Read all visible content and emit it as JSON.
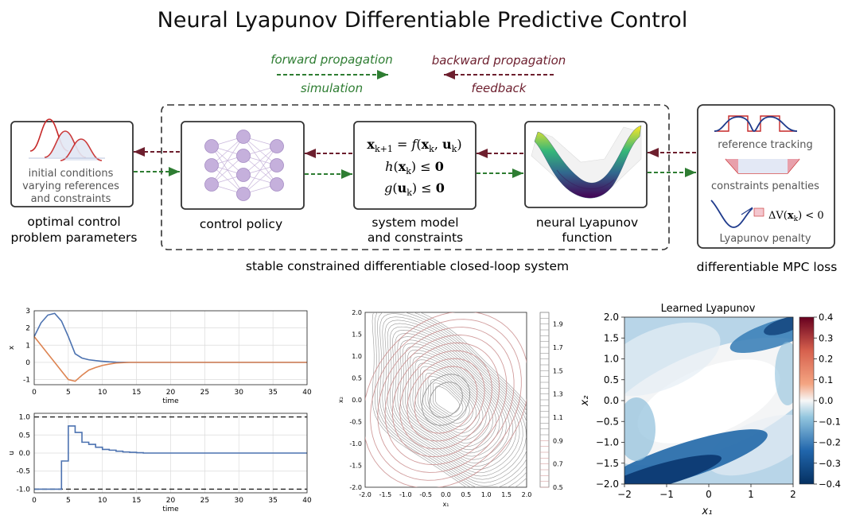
{
  "title": "Neural Lyapunov Differentiable Predictive Control",
  "legend": {
    "forward": "forward propagation",
    "simulation": "simulation",
    "backward": "backward propagation",
    "feedback": "feedback",
    "forward_color": "#2e7d32",
    "backward_color": "#6d1f2e"
  },
  "blocks": {
    "params_text": [
      "initial conditions",
      "varying references",
      "and constraints"
    ],
    "params_caption": [
      "optimal control",
      "problem parameters"
    ],
    "policy_caption": "control policy",
    "model_eq": [
      "x_{k+1} = f(x_k, u_k)",
      "h(x_k) ≤ 0",
      "g(u_k) ≤ 0"
    ],
    "model_caption": [
      "system model",
      "and constraints"
    ],
    "lyap_caption": [
      "neural Lyapunov",
      "function"
    ],
    "loop_caption": "stable constrained differentiable closed-loop system",
    "loss_items": [
      "reference tracking",
      "constraints penalties",
      "Lyapunov penalty"
    ],
    "lyap_inequality": "ΔV(x_k) < 0",
    "loss_caption": "differentiable MPC loss"
  },
  "chart_data": [
    {
      "type": "line",
      "ylabel": "x",
      "xlabel": "time",
      "xlim": [
        0,
        40
      ],
      "ylim": [
        -1.3,
        3.0
      ],
      "xticks": [
        0,
        5,
        10,
        15,
        20,
        25,
        30,
        35,
        40
      ],
      "yticks": [
        -1,
        0,
        1,
        2,
        3
      ],
      "grid": true,
      "series": [
        {
          "color": "#4c72b0",
          "x": [
            0,
            1,
            2,
            3,
            4,
            5,
            6,
            7,
            8,
            9,
            10,
            11,
            12,
            14,
            16,
            20,
            25,
            30,
            40
          ],
          "y": [
            1.5,
            2.3,
            2.75,
            2.85,
            2.4,
            1.5,
            0.5,
            0.25,
            0.15,
            0.1,
            0.06,
            0.03,
            0.01,
            0,
            0,
            0,
            0,
            0,
            0
          ]
        },
        {
          "color": "#dd8452",
          "x": [
            0,
            1,
            2,
            3,
            4,
            5,
            6,
            7,
            8,
            9,
            10,
            11,
            12,
            14,
            16,
            20,
            25,
            30,
            40
          ],
          "y": [
            1.5,
            1.0,
            0.5,
            0.0,
            -0.5,
            -1.0,
            -1.1,
            -0.75,
            -0.45,
            -0.3,
            -0.18,
            -0.1,
            -0.04,
            0,
            0,
            0,
            0,
            0,
            0
          ]
        }
      ]
    },
    {
      "type": "line",
      "ylabel": "u",
      "xlabel": "time",
      "xlim": [
        0,
        40
      ],
      "ylim": [
        -1.1,
        1.1
      ],
      "xticks": [
        0,
        5,
        10,
        15,
        20,
        25,
        30,
        35,
        40
      ],
      "yticks": [
        -1.0,
        -0.5,
        0.0,
        0.5,
        1.0
      ],
      "grid": true,
      "bounds": [
        -1.0,
        1.0
      ],
      "series": [
        {
          "color": "#4c72b0",
          "step": true,
          "x": [
            0,
            4,
            5,
            6,
            7,
            8,
            9,
            10,
            11,
            12,
            13,
            14,
            15,
            16,
            40
          ],
          "y": [
            -1,
            -0.22,
            0.75,
            0.57,
            0.3,
            0.24,
            0.16,
            0.1,
            0.08,
            0.05,
            0.03,
            0.02,
            0.01,
            0,
            0
          ]
        }
      ]
    },
    {
      "type": "contour-streamplot",
      "xlabel": "x₁",
      "ylabel": "x₂",
      "xlim": [
        -2,
        2
      ],
      "ylim": [
        -2,
        2
      ],
      "xticks": [
        -2.0,
        -1.5,
        -1.0,
        -0.5,
        0.0,
        0.5,
        1.0,
        1.5,
        2.0
      ],
      "yticks": [
        -2.0,
        -1.5,
        -1.0,
        -0.5,
        0.0,
        0.5,
        1.0,
        1.5,
        2.0
      ],
      "colorbar_ticks": [
        0.5,
        0.7,
        0.9,
        1.1,
        1.3,
        1.5,
        1.7,
        1.9
      ],
      "colorbar_range": [
        0.5,
        2.0
      ]
    },
    {
      "type": "heatmap",
      "title": "Learned Lyapunov",
      "xlabel": "x₁",
      "ylabel": "x₂",
      "xlim": [
        -2,
        2
      ],
      "ylim": [
        -2,
        2
      ],
      "xticks": [
        -2,
        -1,
        0,
        1,
        2
      ],
      "yticks": [
        -2.0,
        -1.5,
        -1.0,
        -0.5,
        0.0,
        0.5,
        1.0,
        1.5,
        2.0
      ],
      "colorbar_ticks": [
        -0.4,
        -0.3,
        -0.2,
        -0.1,
        0.0,
        0.1,
        0.2,
        0.3,
        0.4
      ],
      "colorbar_range": [
        -0.4,
        0.4
      ]
    }
  ]
}
